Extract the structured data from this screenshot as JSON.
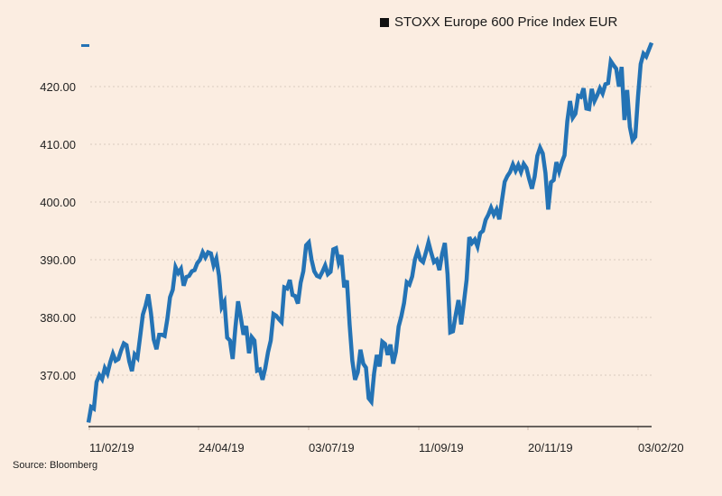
{
  "chart_data": {
    "type": "line",
    "title": "",
    "legend": {
      "entries": [
        "STOXX Europe 600 Price Index EUR"
      ],
      "placement": "top-right"
    },
    "xlabel": "",
    "ylabel": "",
    "source": "Source: Bloomberg",
    "x_tick_labels": [
      "11/02/19",
      "24/04/19",
      "03/07/19",
      "11/09/19",
      "20/11/19",
      "03/02/20"
    ],
    "y_tick_labels": [
      "370.00",
      "380.00",
      "390.00",
      "400.00",
      "410.00",
      "420.00"
    ],
    "y_ticks": [
      370,
      380,
      390,
      400,
      410,
      420
    ],
    "ylim": [
      361.5,
      428
    ],
    "grid": true,
    "line_color": "#2473b5",
    "series": [
      {
        "name": "STOXX Europe 600 Price Index EUR",
        "x_range": [
          "2019-02-08",
          "2020-02-07"
        ],
        "values": [
          361.8,
          364.5,
          364.2,
          368.8,
          370,
          369.3,
          371.2,
          370.3,
          372.2,
          373.7,
          372.5,
          372.8,
          374.3,
          375.5,
          375.2,
          372.4,
          370.7,
          373.6,
          373,
          376.7,
          380.5,
          382,
          384,
          380.7,
          376.2,
          374.5,
          377,
          377,
          376.8,
          379.7,
          383.5,
          384.8,
          388.7,
          387.7,
          388.4,
          385.5,
          387,
          387.2,
          388,
          388.2,
          389.4,
          390,
          391.3,
          390.4,
          391.3,
          391.1,
          389,
          390.2,
          387.2,
          381.8,
          382.7,
          376.5,
          376,
          372.8,
          378.2,
          382.8,
          380,
          377,
          378.5,
          373.8,
          376.6,
          376,
          370.8,
          371,
          369.2,
          371.2,
          374,
          376,
          380.6,
          380.3,
          379.7,
          379.2,
          385.2,
          385,
          386.5,
          383.9,
          383.7,
          382.4,
          386,
          388,
          392.5,
          393,
          390,
          388,
          387.2,
          387,
          387.9,
          389,
          387.5,
          387.9,
          391.8,
          392,
          389.5,
          390.8,
          385.2,
          386.4,
          378.7,
          372.5,
          369.2,
          370.5,
          374.4,
          372,
          371.3,
          366,
          365.4,
          370.3,
          373.5,
          371.5,
          375.8,
          375.4,
          373.5,
          375.3,
          372,
          374,
          378.4,
          380.2,
          382.5,
          386.1,
          385.7,
          387.1,
          390,
          391.6,
          390,
          389.6,
          391.2,
          393,
          391.2,
          389.6,
          390,
          388.2,
          391,
          392.9,
          387.5,
          377.4,
          377.6,
          380.5,
          383,
          378.8,
          382.6,
          386.5,
          393.9,
          392.9,
          393.5,
          392.3,
          394.6,
          395,
          396.9,
          397.8,
          399,
          397.8,
          398.7,
          397,
          400.3,
          403.5,
          404.5,
          405.2,
          406.5,
          405.4,
          406.4,
          405.2,
          406.6,
          405.9,
          404,
          402.3,
          404.4,
          408,
          409.4,
          408.4,
          405,
          398.7,
          403.4,
          403.8,
          406.9,
          405.3,
          406.9,
          408.1,
          414,
          417.5,
          414.6,
          415.3,
          418.4,
          418.2,
          419.7,
          416.2,
          416.1,
          419.6,
          417.5,
          418.5,
          419.7,
          418.8,
          420.4,
          420.6,
          424.4,
          423.7,
          423.1,
          420,
          423.4,
          414.2,
          419.4,
          413,
          410.7,
          411.3,
          418.2,
          423.9,
          425.7,
          425.2,
          426.4,
          427.6
        ]
      }
    ]
  }
}
